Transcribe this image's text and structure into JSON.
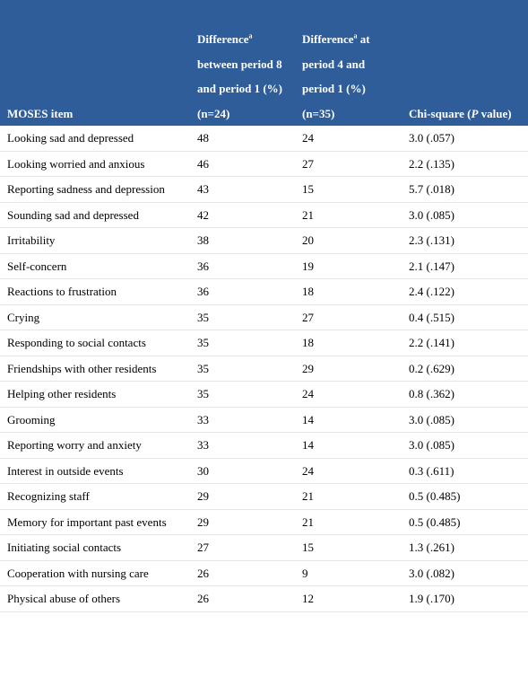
{
  "headers": {
    "item": "MOSES item",
    "diff8_pre": "Difference",
    "diff8_sup": "a",
    "diff8_post": " between period 8 and period 1 (%) (n=24)",
    "diff4_pre": "Difference",
    "diff4_sup": "a",
    "diff4_post": " at period 4 and period 1 (%) (n=35)",
    "chi_pre": "Chi-square (",
    "chi_italic": "P",
    "chi_post": " value)"
  },
  "rows": [
    {
      "item": "Looking sad and depressed",
      "d8": "48",
      "d4": "24",
      "chi": "3.0 (.057)"
    },
    {
      "item": "Looking worried and anxious",
      "d8": "46",
      "d4": "27",
      "chi": "2.2 (.135)"
    },
    {
      "item": "Reporting sadness and depression",
      "d8": "43",
      "d4": "15",
      "chi": "5.7 (.018)"
    },
    {
      "item": "Sounding sad and depressed",
      "d8": "42",
      "d4": "21",
      "chi": "3.0 (.085)"
    },
    {
      "item": "Irritability",
      "d8": "38",
      "d4": "20",
      "chi": "2.3 (.131)"
    },
    {
      "item": "Self-concern",
      "d8": "36",
      "d4": "19",
      "chi": "2.1 (.147)"
    },
    {
      "item": "Reactions to frustration",
      "d8": "36",
      "d4": "18",
      "chi": "2.4 (.122)"
    },
    {
      "item": "Crying",
      "d8": "35",
      "d4": "27",
      "chi": "0.4 (.515)"
    },
    {
      "item": "Responding to social contacts",
      "d8": "35",
      "d4": "18",
      "chi": "2.2 (.141)"
    },
    {
      "item": "Friendships with other residents",
      "d8": "35",
      "d4": "29",
      "chi": "0.2 (.629)"
    },
    {
      "item": "Helping other residents",
      "d8": "35",
      "d4": "24",
      "chi": "0.8 (.362)"
    },
    {
      "item": "Grooming",
      "d8": "33",
      "d4": "14",
      "chi": "3.0 (.085)"
    },
    {
      "item": "Reporting worry and anxiety",
      "d8": "33",
      "d4": "14",
      "chi": "3.0 (.085)"
    },
    {
      "item": "Interest in outside events",
      "d8": "30",
      "d4": "24",
      "chi": "0.3 (.611)"
    },
    {
      "item": "Recognizing staff",
      "d8": "29",
      "d4": "21",
      "chi": "0.5 (0.485)"
    },
    {
      "item": "Memory for important past events",
      "d8": "29",
      "d4": "21",
      "chi": "0.5 (0.485)"
    },
    {
      "item": "Initiating social contacts",
      "d8": "27",
      "d4": "15",
      "chi": "1.3 (.261)"
    },
    {
      "item": "Cooperation with nursing care",
      "d8": "26",
      "d4": "9",
      "chi": "3.0 (.082)"
    },
    {
      "item": "Physical abuse of others",
      "d8": "26",
      "d4": "12",
      "chi": "1.9 (.170)"
    }
  ]
}
